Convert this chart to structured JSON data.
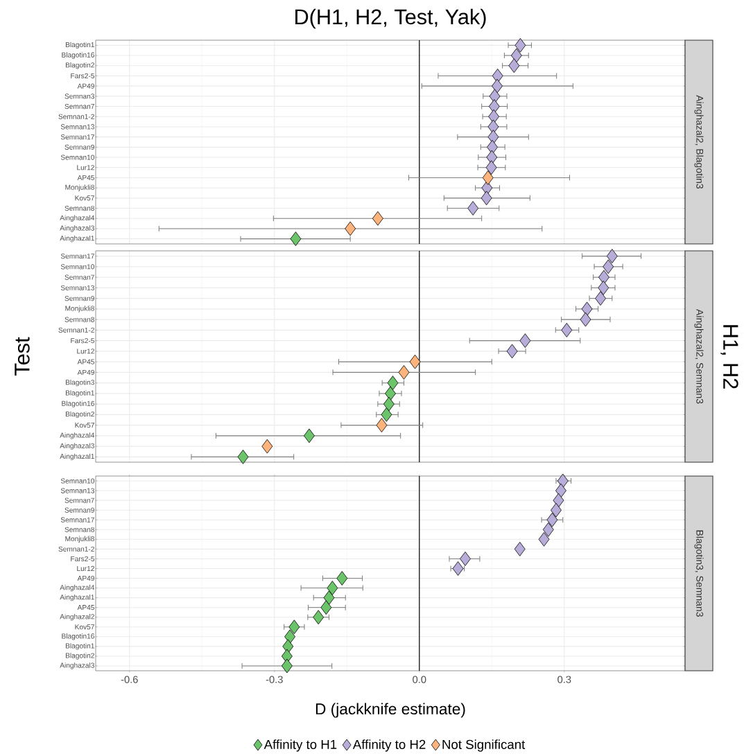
{
  "chart_data": [
    {
      "type": "scatter",
      "orientation": "horizontal",
      "title": "D(H1, H2, Test, Yak)",
      "y2label": "Ainghazal2, Blagotin3",
      "marker": "diamond",
      "grid": true,
      "tick_labels": "y",
      "categories": [
        "Blagotin1",
        "Blagotin16",
        "Blagotin2",
        "Fars2-5",
        "AP49",
        "Semnan3",
        "Semnan7",
        "Semnan1-2",
        "Semnan13",
        "Semnan17",
        "Semnan9",
        "Semnan10",
        "Lur12",
        "AP45",
        "Monjukli8",
        "Kov57",
        "Semnan8",
        "Ainghazal4",
        "Ainghazal3",
        "Ainghazal1"
      ],
      "xlim": [
        -0.67,
        0.55
      ],
      "xticks": [
        -0.6,
        -0.3,
        0,
        0.3
      ],
      "ref_lines": [
        {
          "axis": "x",
          "value": 0,
          "color": "#000000"
        }
      ],
      "series": [
        {
          "color": "#6cc46a",
          "values": [
            null,
            null,
            null,
            null,
            null,
            null,
            null,
            null,
            null,
            null,
            null,
            null,
            null,
            null,
            null,
            null,
            null,
            null,
            null,
            -0.256
          ],
          "errors": [
            null,
            null,
            null,
            null,
            null,
            null,
            null,
            null,
            null,
            null,
            null,
            null,
            null,
            null,
            null,
            null,
            null,
            null,
            null,
            [
              -0.37,
              -0.143
            ]
          ]
        },
        {
          "color": "#b8acd8",
          "values": [
            0.209,
            0.201,
            0.196,
            0.162,
            0.161,
            0.156,
            0.155,
            0.154,
            0.153,
            0.153,
            0.151,
            0.15,
            0.149,
            null,
            0.14,
            0.139,
            0.111,
            null,
            null,
            null
          ],
          "errors": [
            [
              0.184,
              0.232
            ],
            [
              0.176,
              0.226
            ],
            [
              0.172,
              0.225
            ],
            [
              0.039,
              0.284
            ],
            [
              0.005,
              0.318
            ],
            [
              0.132,
              0.181
            ],
            [
              0.129,
              0.182
            ],
            [
              0.131,
              0.18
            ],
            [
              0.127,
              0.181
            ],
            [
              0.079,
              0.226
            ],
            [
              0.127,
              0.177
            ],
            [
              0.122,
              0.179
            ],
            [
              0.121,
              0.178
            ],
            null,
            [
              0.116,
              0.166
            ],
            [
              0.051,
              0.229
            ],
            [
              0.058,
              0.165
            ],
            null,
            null,
            null
          ]
        },
        {
          "color": "#fdb47c",
          "values": [
            null,
            null,
            null,
            null,
            null,
            null,
            null,
            null,
            null,
            null,
            null,
            null,
            null,
            0.142,
            null,
            null,
            null,
            -0.086,
            -0.143,
            null
          ],
          "errors": [
            null,
            null,
            null,
            null,
            null,
            null,
            null,
            null,
            null,
            null,
            null,
            null,
            null,
            [
              -0.022,
              0.311
            ],
            null,
            null,
            null,
            [
              -0.302,
              0.129
            ],
            [
              -0.539,
              0.254
            ],
            null
          ]
        }
      ]
    },
    {
      "type": "scatter",
      "orientation": "horizontal",
      "ylabel": "Test",
      "y2label": "Ainghazal2, Semnan3",
      "annotations": [
        "H1, H2"
      ],
      "marker": "diamond",
      "grid": true,
      "tick_labels": "y",
      "categories": [
        "Semnan17",
        "Semnan10",
        "Semnan7",
        "Semnan13",
        "Semnan9",
        "Monjukli8",
        "Semnan8",
        "Semnan1-2",
        "Fars2-5",
        "Lur12",
        "AP45",
        "AP49",
        "Blagotin3",
        "Blagotin1",
        "Blagotin16",
        "Blagotin2",
        "Kov57",
        "Ainghazal4",
        "Ainghazal3",
        "Ainghazal1"
      ],
      "xlim": [
        -0.67,
        0.55
      ],
      "xticks": [
        -0.6,
        -0.3,
        0,
        0.3
      ],
      "ref_lines": [
        {
          "axis": "x",
          "value": 0,
          "color": "#000000"
        }
      ],
      "series": [
        {
          "color": "#6cc46a",
          "values": [
            null,
            null,
            null,
            null,
            null,
            null,
            null,
            null,
            null,
            null,
            null,
            null,
            -0.055,
            -0.06,
            -0.063,
            -0.068,
            null,
            -0.228,
            null,
            -0.365
          ],
          "errors": [
            null,
            null,
            null,
            null,
            null,
            null,
            null,
            null,
            null,
            null,
            null,
            null,
            [
              -0.077,
              -0.032
            ],
            [
              -0.083,
              -0.037
            ],
            [
              -0.086,
              -0.041
            ],
            [
              -0.089,
              -0.044
            ],
            null,
            [
              -0.421,
              -0.039
            ],
            null,
            [
              -0.472,
              -0.26
            ]
          ]
        },
        {
          "color": "#b8acd8",
          "values": [
            0.399,
            0.391,
            0.382,
            0.381,
            0.375,
            0.347,
            0.344,
            0.305,
            0.219,
            0.192,
            null,
            null,
            null,
            null,
            null,
            null,
            null,
            null,
            null,
            null
          ],
          "errors": [
            [
              0.337,
              0.459
            ],
            [
              0.362,
              0.421
            ],
            [
              0.36,
              0.405
            ],
            [
              0.356,
              0.405
            ],
            [
              0.352,
              0.399
            ],
            [
              0.324,
              0.37
            ],
            [
              0.294,
              0.395
            ],
            [
              0.282,
              0.33
            ],
            [
              0.104,
              0.333
            ],
            [
              0.164,
              0.22
            ],
            null,
            null,
            null,
            null,
            null,
            null,
            null,
            null,
            null,
            null
          ]
        },
        {
          "color": "#fdb47c",
          "values": [
            null,
            null,
            null,
            null,
            null,
            null,
            null,
            null,
            null,
            null,
            -0.009,
            -0.032,
            null,
            null,
            null,
            null,
            -0.078,
            null,
            -0.315,
            null
          ],
          "errors": [
            null,
            null,
            null,
            null,
            null,
            null,
            null,
            null,
            null,
            null,
            [
              -0.167,
              0.15
            ],
            [
              -0.179,
              0.116
            ],
            null,
            null,
            null,
            null,
            [
              -0.162,
              0.007
            ],
            null,
            null,
            null
          ]
        }
      ]
    },
    {
      "type": "scatter",
      "orientation": "horizontal",
      "xlabel": "D (jackknife estimate)",
      "y2label": "Blagotin3, Semnan3",
      "marker": "diamond",
      "grid": true,
      "legend": "bottom",
      "categories": [
        "Semnan10",
        "Semnan13",
        "Semnan7",
        "Semnan9",
        "Semnan17",
        "Semnan8",
        "Monjukli8",
        "Semnan1-2",
        "Fars2-5",
        "Lur12",
        "AP49",
        "Ainghazal4",
        "Ainghazal1",
        "AP45",
        "Ainghazal2",
        "Kov57",
        "Blagotin16",
        "Blagotin1",
        "Blagotin2",
        "Ainghazal3"
      ],
      "xlim": [
        -0.67,
        0.55
      ],
      "xticks": [
        -0.6,
        -0.3,
        {
          "value": 0,
          "label": "0.0"
        },
        0.3
      ],
      "ref_lines": [
        {
          "axis": "x",
          "value": 0,
          "color": "#000000"
        }
      ],
      "series": [
        {
          "name": "Affinity to H1",
          "color": "#6cc46a",
          "values": [
            null,
            null,
            null,
            null,
            null,
            null,
            null,
            null,
            null,
            null,
            -0.16,
            -0.18,
            -0.187,
            -0.193,
            -0.209,
            -0.259,
            -0.268,
            -0.272,
            -0.274,
            -0.274
          ],
          "errors": [
            null,
            null,
            null,
            null,
            null,
            null,
            null,
            null,
            null,
            null,
            [
              -0.2,
              -0.118
            ],
            [
              -0.245,
              -0.117
            ],
            [
              -0.219,
              -0.153
            ],
            [
              -0.23,
              -0.153
            ],
            [
              -0.231,
              -0.187
            ],
            [
              -0.28,
              -0.238
            ],
            null,
            null,
            null,
            [
              -0.367,
              -0.181
            ]
          ]
        },
        {
          "name": "Affinity to H2",
          "color": "#b8acd8",
          "values": [
            0.297,
            0.293,
            0.288,
            0.283,
            0.275,
            0.267,
            0.258,
            0.208,
            0.095,
            0.08,
            null,
            null,
            null,
            null,
            null,
            null,
            null,
            null,
            null,
            null
          ],
          "errors": [
            [
              0.283,
              0.314
            ],
            null,
            null,
            null,
            [
              0.253,
              0.297
            ],
            null,
            null,
            null,
            [
              0.062,
              0.125
            ],
            [
              0.065,
              0.093
            ],
            null,
            null,
            null,
            null,
            null,
            null,
            null,
            null,
            null,
            null
          ]
        },
        {
          "name": "Not Significant",
          "color": "#fdb47c",
          "values": [
            null,
            null,
            null,
            null,
            null,
            null,
            null,
            null,
            null,
            null,
            null,
            null,
            null,
            null,
            null,
            null,
            null,
            null,
            null,
            null
          ]
        }
      ]
    }
  ]
}
